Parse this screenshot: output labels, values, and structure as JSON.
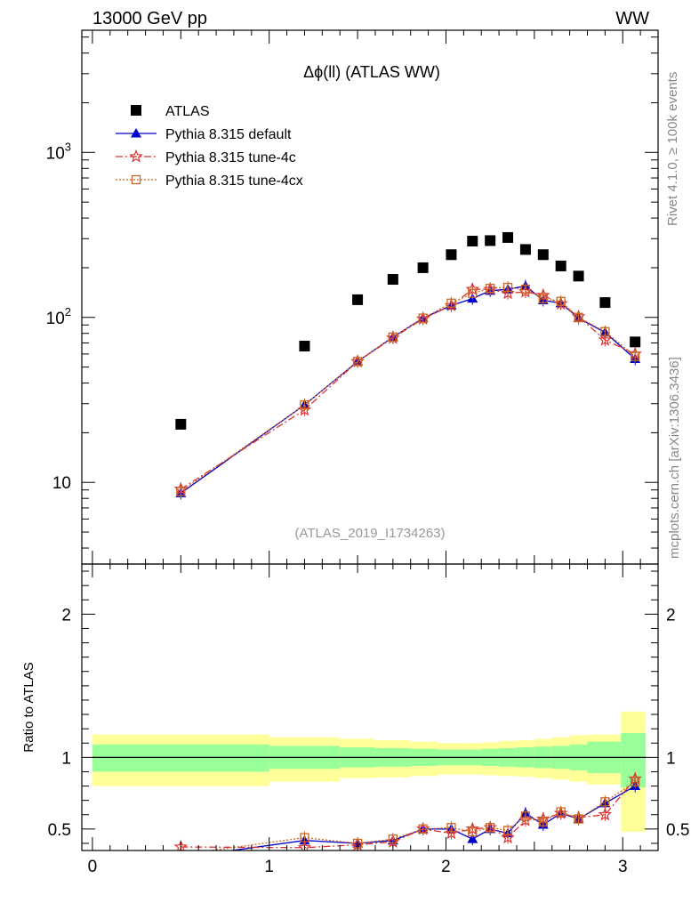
{
  "header": {
    "left": "13000 GeV pp",
    "right": "WW",
    "side_top": "Rivet 4.1.0, ≥ 100k events",
    "side_bottom": "mcplots.cern.ch [arXiv:1306.3436]"
  },
  "chart_data": [
    {
      "type": "scatter",
      "title": "Δϕ(ll) (ATLAS WW)",
      "watermark": "(ATLAS_2019_I1734263)",
      "xlabel": "",
      "ylabel": "",
      "yscale": "log",
      "xlim": [
        -0.06,
        3.2
      ],
      "ylim": [
        3.2,
        5500
      ],
      "y_tick_labels": [
        "10",
        "10^2",
        "10^3"
      ],
      "legend_position": "top-left",
      "series": [
        {
          "name": "ATLAS",
          "color": "#000000",
          "marker": "square",
          "x": [
            0.5,
            1.2,
            1.5,
            1.7,
            1.87,
            2.03,
            2.15,
            2.25,
            2.35,
            2.45,
            2.55,
            2.65,
            2.75,
            2.9,
            3.07
          ],
          "values": [
            22.5,
            67,
            128,
            170,
            200,
            240,
            290,
            292,
            305,
            258,
            240,
            205,
            178,
            123,
            71
          ]
        },
        {
          "name": "Pythia 8.315 default",
          "color": "#0000cc",
          "marker": "triangle",
          "line": "solid",
          "x": [
            0.5,
            1.2,
            1.5,
            1.7,
            1.87,
            2.03,
            2.15,
            2.25,
            2.35,
            2.45,
            2.55,
            2.65,
            2.75,
            2.9,
            3.07
          ],
          "values": [
            8.6,
            29.5,
            54,
            76,
            99,
            118,
            130,
            145,
            148,
            155,
            127,
            122,
            99,
            81,
            56
          ]
        },
        {
          "name": "Pythia 8.315 tune-4c",
          "color": "#dd3333",
          "marker": "star",
          "line": "dashdot",
          "x": [
            0.5,
            1.2,
            1.5,
            1.7,
            1.87,
            2.03,
            2.15,
            2.25,
            2.35,
            2.45,
            2.55,
            2.65,
            2.75,
            2.9,
            3.07
          ],
          "values": [
            9.1,
            27.5,
            54,
            75,
            98,
            118,
            148,
            148,
            140,
            143,
            136,
            121,
            101,
            73,
            60
          ]
        },
        {
          "name": "Pythia 8.315 tune-4cx",
          "color": "#cc6622",
          "marker": "open-square",
          "line": "dotted",
          "x": [
            0.5,
            1.2,
            1.5,
            1.7,
            1.87,
            2.03,
            2.15,
            2.25,
            2.35,
            2.45,
            2.55,
            2.65,
            2.75,
            2.9,
            3.07
          ],
          "values": [
            8.8,
            29.5,
            54,
            76,
            99,
            122,
            140,
            150,
            152,
            148,
            130,
            125,
            100,
            82,
            58
          ]
        }
      ]
    },
    {
      "type": "scatter",
      "ylabel": "Ratio to ATLAS",
      "xlabel": "",
      "xlim": [
        -0.06,
        3.2
      ],
      "ylim": [
        0.35,
        2.35
      ],
      "x_ticks": [
        0,
        1,
        2,
        3
      ],
      "y_ticks": [
        0.5,
        1,
        2
      ],
      "y_tick_labels": [
        "0.5",
        "1",
        "2"
      ],
      "bands": {
        "edges": [
          0,
          1.0,
          1.4,
          1.6,
          1.8,
          1.95,
          2.1,
          2.2,
          2.3,
          2.4,
          2.5,
          2.6,
          2.7,
          2.8,
          2.99,
          3.13
        ],
        "green_lo": [
          0.9,
          0.92,
          0.93,
          0.935,
          0.94,
          0.945,
          0.945,
          0.94,
          0.935,
          0.93,
          0.925,
          0.92,
          0.91,
          0.89,
          0.79
        ],
        "green_hi": [
          1.09,
          1.08,
          1.07,
          1.065,
          1.06,
          1.055,
          1.055,
          1.06,
          1.065,
          1.07,
          1.075,
          1.08,
          1.09,
          1.11,
          1.17
        ],
        "yellow_lo": [
          0.8,
          0.83,
          0.855,
          0.86,
          0.87,
          0.88,
          0.88,
          0.875,
          0.87,
          0.865,
          0.855,
          0.845,
          0.83,
          0.81,
          0.48
        ],
        "yellow_hi": [
          1.16,
          1.14,
          1.13,
          1.12,
          1.11,
          1.1,
          1.1,
          1.105,
          1.115,
          1.12,
          1.13,
          1.14,
          1.155,
          1.16,
          1.32
        ]
      },
      "series": [
        {
          "name": "Pythia 8.315 default",
          "color": "#0000cc",
          "marker": "triangle",
          "line": "solid",
          "x": [
            0.5,
            1.2,
            1.5,
            1.7,
            1.87,
            2.03,
            2.15,
            2.25,
            2.35,
            2.45,
            2.55,
            2.65,
            2.75,
            2.9,
            3.07
          ],
          "values": [
            0.3,
            0.42,
            0.4,
            0.42,
            0.5,
            0.5,
            0.43,
            0.5,
            0.47,
            0.61,
            0.53,
            0.61,
            0.57,
            0.68,
            0.8
          ]
        },
        {
          "name": "Pythia 8.315 tune-4c",
          "color": "#dd3333",
          "marker": "star",
          "line": "dashdot",
          "x": [
            0.5,
            1.2,
            1.5,
            1.7,
            1.87,
            2.03,
            2.15,
            2.25,
            2.35,
            2.45,
            2.55,
            2.65,
            2.75,
            2.9,
            3.07
          ],
          "values": [
            0.375,
            0.37,
            0.39,
            0.41,
            0.5,
            0.47,
            0.5,
            0.51,
            0.44,
            0.56,
            0.57,
            0.61,
            0.58,
            0.6,
            0.85
          ]
        },
        {
          "name": "Pythia 8.315 tune-4cx",
          "color": "#cc6622",
          "marker": "open-square",
          "line": "dotted",
          "x": [
            0.5,
            1.2,
            1.5,
            1.7,
            1.87,
            2.03,
            2.15,
            2.25,
            2.35,
            2.45,
            2.55,
            2.65,
            2.75,
            2.9,
            3.07
          ],
          "values": [
            0.32,
            0.44,
            0.4,
            0.43,
            0.5,
            0.51,
            0.48,
            0.51,
            0.49,
            0.59,
            0.55,
            0.62,
            0.57,
            0.69,
            0.83
          ]
        }
      ]
    }
  ]
}
